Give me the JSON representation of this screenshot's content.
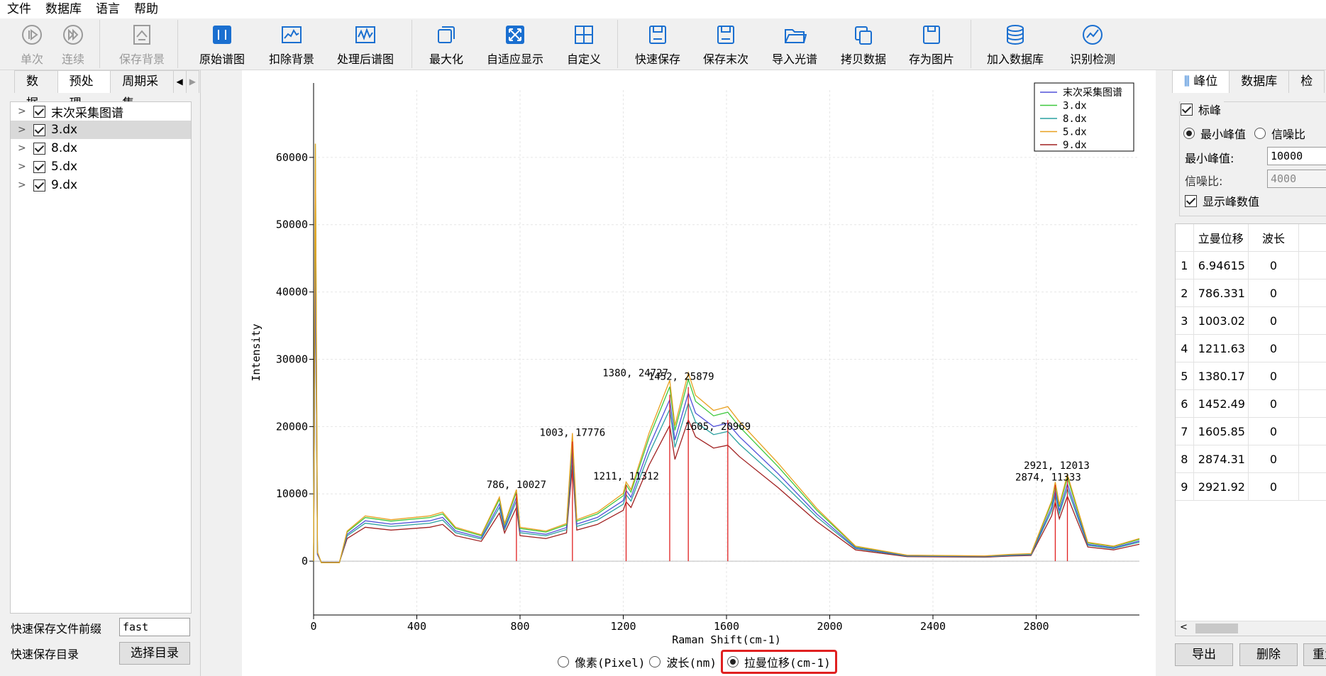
{
  "menu": [
    "文件",
    "数据库",
    "语言",
    "帮助"
  ],
  "toolbar": {
    "single": "单次",
    "continuous": "连续",
    "save_background": "保存背景",
    "raw_spectrum": "原始谱图",
    "subtract_background": "扣除背景",
    "processed_spectrum": "处理后谱图",
    "maximize": "最大化",
    "auto_fit": "自适应显示",
    "custom": "自定义",
    "quick_save": "快速保存",
    "save_last": "保存末次",
    "import_spectrum": "导入光谱",
    "copy_data": "拷贝数据",
    "save_image": "存为图片",
    "add_database": "加入数据库",
    "identify": "识别检测"
  },
  "left": {
    "tabs": [
      "数据",
      "预处理",
      "周期采集"
    ],
    "tree": [
      {
        "label": "末次采集图谱",
        "checked": true
      },
      {
        "label": "3.dx",
        "checked": true,
        "selected": true
      },
      {
        "label": "8.dx",
        "checked": true
      },
      {
        "label": "5.dx",
        "checked": true
      },
      {
        "label": "9.dx",
        "checked": true
      }
    ],
    "prefix_label": "快速保存文件前缀",
    "prefix_value": "fast",
    "dir_label": "快速保存目录",
    "dir_button": "选择目录"
  },
  "unit_options": {
    "pixel": "像素(Pixel)",
    "wavelength": "波长(nm)",
    "raman": "拉曼位移(cm-1)",
    "selected": "raman"
  },
  "chart_data": {
    "type": "line",
    "xlabel": "Raman Shift(cm-1)",
    "ylabel": "Intensity",
    "xlim": [
      0,
      3200
    ],
    "ylim": [
      -8000,
      70000
    ],
    "xticks": [
      0,
      400,
      800,
      1200,
      1600,
      2000,
      2400,
      2800
    ],
    "yticks": [
      0,
      10000,
      20000,
      30000,
      40000,
      50000,
      60000
    ],
    "grid": true,
    "legend_position": "top-right",
    "series": [
      {
        "name": "末次采集图谱",
        "color": "#5050d8",
        "scale": 1.0,
        "points": [
          [
            0,
            0
          ],
          [
            7,
            47000
          ],
          [
            15,
            1000
          ],
          [
            30,
            -200
          ],
          [
            100,
            -200
          ],
          [
            130,
            4000
          ],
          [
            200,
            6000
          ],
          [
            300,
            5500
          ],
          [
            450,
            6000
          ],
          [
            500,
            6500
          ],
          [
            550,
            4500
          ],
          [
            650,
            3500
          ],
          [
            720,
            8500
          ],
          [
            740,
            5000
          ],
          [
            786,
            9500
          ],
          [
            800,
            4500
          ],
          [
            900,
            4000
          ],
          [
            980,
            5000
          ],
          [
            1003,
            17000
          ],
          [
            1020,
            5500
          ],
          [
            1100,
            6500
          ],
          [
            1200,
            9000
          ],
          [
            1211,
            10500
          ],
          [
            1230,
            9500
          ],
          [
            1300,
            17000
          ],
          [
            1380,
            24000
          ],
          [
            1400,
            18000
          ],
          [
            1452,
            25000
          ],
          [
            1480,
            22000
          ],
          [
            1550,
            20000
          ],
          [
            1605,
            20500
          ],
          [
            1650,
            18500
          ],
          [
            1800,
            13000
          ],
          [
            1950,
            7000
          ],
          [
            2100,
            2000
          ],
          [
            2300,
            800
          ],
          [
            2600,
            700
          ],
          [
            2700,
            900
          ],
          [
            2780,
            1000
          ],
          [
            2860,
            8000
          ],
          [
            2874,
            10500
          ],
          [
            2890,
            7500
          ],
          [
            2921,
            11500
          ],
          [
            2960,
            7000
          ],
          [
            3000,
            2500
          ],
          [
            3100,
            2000
          ],
          [
            3200,
            3000
          ]
        ]
      },
      {
        "name": "3.dx",
        "color": "#3ec83e",
        "scale": 1.08
      },
      {
        "name": "8.dx",
        "color": "#2aa0a0",
        "scale": 0.94
      },
      {
        "name": "5.dx",
        "color": "#e8a020",
        "scale": 1.12
      },
      {
        "name": "9.dx",
        "color": "#a02020",
        "scale": 0.84
      }
    ],
    "peak_labels": [
      {
        "x": 786,
        "y": 10027,
        "label": "786, 10027"
      },
      {
        "x": 1003,
        "y": 17776,
        "label": "1003, 17776"
      },
      {
        "x": 1211,
        "y": 11312,
        "label": "1211, 11312"
      },
      {
        "x": 1380,
        "y": 24727,
        "label": "1380, 24727"
      },
      {
        "x": 1452,
        "y": 25879,
        "label": "1452, 25879"
      },
      {
        "x": 1605,
        "y": 20969,
        "label": "1605, 20969"
      },
      {
        "x": 2874,
        "y": 11333,
        "label": "2874, 11333"
      },
      {
        "x": 2921,
        "y": 12013,
        "label": "2921, 12013"
      }
    ]
  },
  "right": {
    "tabs": [
      "峰位",
      "数据库",
      "检"
    ],
    "mark_peak": "标峰",
    "min_peak_radio": "最小峰值",
    "snr_radio": "信噪比",
    "min_peak_label": "最小峰值:",
    "min_peak_value": "10000",
    "snr_label": "信噪比:",
    "snr_value": "4000",
    "show_values": "显示峰数值",
    "table_headers": [
      "立曼位移",
      "波长"
    ],
    "rows": [
      [
        "1",
        "6.94615",
        "0"
      ],
      [
        "2",
        "786.331",
        "0"
      ],
      [
        "3",
        "1003.02",
        "0"
      ],
      [
        "4",
        "1211.63",
        "0"
      ],
      [
        "5",
        "1380.17",
        "0"
      ],
      [
        "6",
        "1452.49",
        "0"
      ],
      [
        "7",
        "1605.85",
        "0"
      ],
      [
        "8",
        "2874.31",
        "0"
      ],
      [
        "9",
        "2921.92",
        "0"
      ]
    ],
    "export": "导出",
    "delete": "删除",
    "reset": "重置"
  }
}
